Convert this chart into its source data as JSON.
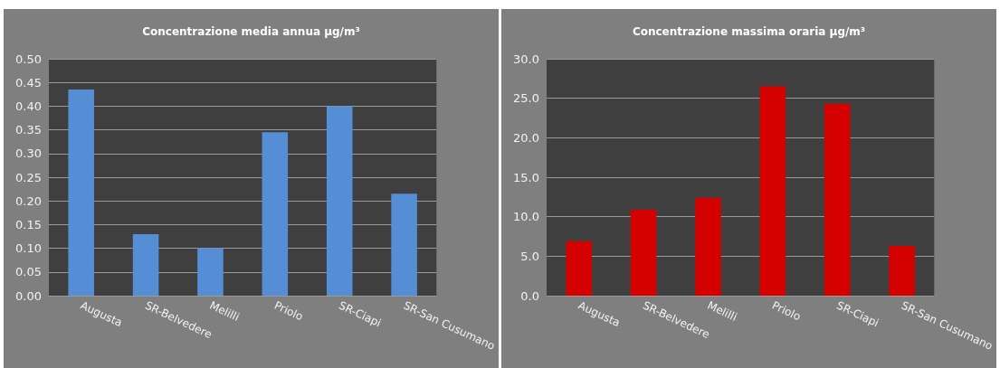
{
  "chart_data": [
    {
      "type": "bar",
      "title": "Concentrazione media annua µg/m³",
      "categories": [
        "Augusta",
        "SR-Belvedere",
        "Melilli",
        "Priolo",
        "SR-Ciapi",
        "SR-San Cusumano"
      ],
      "values": [
        0.435,
        0.13,
        0.1,
        0.345,
        0.4,
        0.215
      ],
      "color": "#558ed5",
      "ylim": [
        0,
        0.5
      ],
      "yticks": [
        {
          "value": 0,
          "label": "0.00"
        },
        {
          "value": 0.05,
          "label": "0.05"
        },
        {
          "value": 0.1,
          "label": "0.10"
        },
        {
          "value": 0.15,
          "label": "0.15"
        },
        {
          "value": 0.2,
          "label": "0.20"
        },
        {
          "value": 0.25,
          "label": "0.25"
        },
        {
          "value": 0.3,
          "label": "0.30"
        },
        {
          "value": 0.35,
          "label": "0.35"
        },
        {
          "value": 0.4,
          "label": "0.40"
        },
        {
          "value": 0.45,
          "label": "0.45"
        },
        {
          "value": 0.5,
          "label": "0.50"
        }
      ],
      "grid": "y"
    },
    {
      "type": "bar",
      "title": "Concentrazione massima oraria µg/m³",
      "categories": [
        "Augusta",
        "SR-Belvedere",
        "Melilli",
        "Priolo",
        "SR-Ciapi",
        "SR-San Cusumano"
      ],
      "values": [
        6.9,
        10.9,
        12.4,
        26.5,
        24.3,
        6.3
      ],
      "color": "#d40000",
      "ylim": [
        0,
        30
      ],
      "yticks": [
        {
          "value": 0,
          "label": "0.0"
        },
        {
          "value": 5,
          "label": "5.0"
        },
        {
          "value": 10,
          "label": "10.0"
        },
        {
          "value": 15,
          "label": "15.0"
        },
        {
          "value": 20,
          "label": "20.0"
        },
        {
          "value": 25,
          "label": "25.0"
        },
        {
          "value": 30,
          "label": "30.0"
        }
      ],
      "grid": "y"
    }
  ]
}
